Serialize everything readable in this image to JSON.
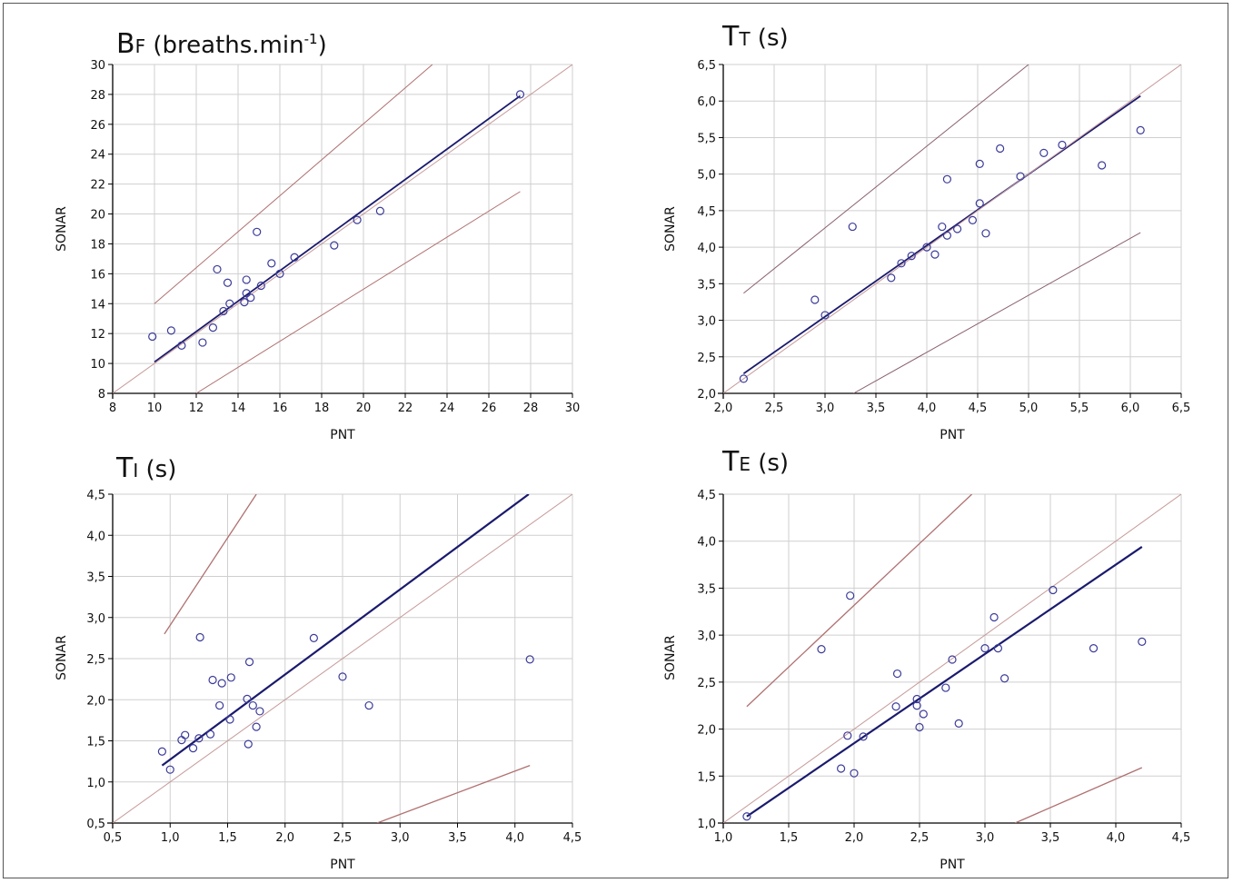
{
  "chart_data": [
    {
      "type": "scatter",
      "title": {
        "main": "B",
        "sub": "F",
        "unit_prefix": " (breaths.min",
        "unit_sup": "-1",
        "unit_suffix": ")"
      },
      "xlabel": "PNT",
      "ylabel": "SONAR",
      "xlim": [
        8,
        30
      ],
      "ylim": [
        8,
        30
      ],
      "xticks": [
        "8",
        "10",
        "12",
        "14",
        "16",
        "18",
        "20",
        "22",
        "24",
        "26",
        "28",
        "30"
      ],
      "yticks": [
        "8",
        "10",
        "12",
        "14",
        "16",
        "18",
        "20",
        "22",
        "24",
        "26",
        "28",
        "30"
      ],
      "grid": true,
      "points": [
        [
          9.9,
          11.8
        ],
        [
          10.8,
          12.2
        ],
        [
          11.3,
          11.2
        ],
        [
          12.3,
          11.4
        ],
        [
          12.8,
          12.4
        ],
        [
          13.0,
          16.3
        ],
        [
          13.3,
          13.5
        ],
        [
          13.5,
          15.4
        ],
        [
          13.6,
          14.0
        ],
        [
          14.3,
          14.1
        ],
        [
          14.4,
          14.7
        ],
        [
          14.4,
          15.6
        ],
        [
          14.6,
          14.4
        ],
        [
          14.9,
          18.8
        ],
        [
          15.1,
          15.2
        ],
        [
          15.6,
          16.7
        ],
        [
          16.0,
          16.0
        ],
        [
          16.7,
          17.1
        ],
        [
          18.6,
          17.9
        ],
        [
          19.7,
          19.6
        ],
        [
          20.8,
          20.2
        ],
        [
          27.5,
          28.0
        ]
      ],
      "lines": [
        {
          "name": "regression",
          "x": [
            10,
            27.5
          ],
          "y": [
            10.1,
            27.9
          ],
          "color": "#1a1a6e",
          "width": 1.8
        },
        {
          "name": "identity",
          "x": [
            8,
            30
          ],
          "y": [
            8,
            30
          ],
          "color": "#c79a9a",
          "width": 1
        },
        {
          "name": "upper-limit",
          "x": [
            10,
            23.3
          ],
          "y": [
            14,
            30
          ],
          "color": "#b07070",
          "width": 1
        },
        {
          "name": "lower-limit",
          "x": [
            12,
            27.5
          ],
          "y": [
            8,
            21.5
          ],
          "color": "#b07070",
          "width": 1
        }
      ]
    },
    {
      "type": "scatter",
      "title": {
        "main": "T",
        "sub": "T",
        "unit_prefix": " (s)",
        "unit_sup": "",
        "unit_suffix": ""
      },
      "xlabel": "PNT",
      "ylabel": "SONAR",
      "xlim": [
        2.0,
        6.5
      ],
      "ylim": [
        2.0,
        6.5
      ],
      "xticks": [
        "2,0",
        "2,5",
        "3,0",
        "3,5",
        "4,0",
        "4,5",
        "5,0",
        "5,5",
        "6,0",
        "6,5"
      ],
      "yticks": [
        "2,0",
        "2,5",
        "3,0",
        "3,5",
        "4,0",
        "4,5",
        "5,0",
        "5,5",
        "6,0",
        "6,5"
      ],
      "grid": true,
      "points": [
        [
          2.2,
          2.2
        ],
        [
          2.9,
          3.28
        ],
        [
          3.0,
          3.07
        ],
        [
          3.27,
          4.28
        ],
        [
          3.65,
          3.58
        ],
        [
          3.75,
          3.78
        ],
        [
          3.85,
          3.88
        ],
        [
          4.0,
          4.0
        ],
        [
          4.08,
          3.9
        ],
        [
          4.15,
          4.28
        ],
        [
          4.2,
          4.16
        ],
        [
          4.2,
          4.93
        ],
        [
          4.3,
          4.25
        ],
        [
          4.45,
          4.37
        ],
        [
          4.52,
          4.6
        ],
        [
          4.52,
          5.14
        ],
        [
          4.58,
          4.19
        ],
        [
          4.72,
          5.35
        ],
        [
          4.92,
          4.97
        ],
        [
          5.15,
          5.29
        ],
        [
          5.33,
          5.4
        ],
        [
          5.72,
          5.12
        ],
        [
          6.1,
          5.6
        ]
      ],
      "lines": [
        {
          "name": "regression",
          "x": [
            2.2,
            6.1
          ],
          "y": [
            2.27,
            6.07
          ],
          "color": "#1a1a6e",
          "width": 1.8
        },
        {
          "name": "identity",
          "x": [
            2.0,
            6.5
          ],
          "y": [
            2.0,
            6.5
          ],
          "color": "#c79a9a",
          "width": 1
        },
        {
          "name": "upper-limit",
          "x": [
            2.2,
            5.0
          ],
          "y": [
            3.37,
            6.5
          ],
          "color": "#8a6070",
          "width": 1
        },
        {
          "name": "lower-limit",
          "x": [
            3.28,
            6.1
          ],
          "y": [
            2.0,
            4.2
          ],
          "color": "#8a6070",
          "width": 1
        }
      ]
    },
    {
      "type": "scatter",
      "title": {
        "main": "T",
        "sub": "I",
        "unit_prefix": " (s)",
        "unit_sup": "",
        "unit_suffix": ""
      },
      "xlabel": "PNT",
      "ylabel": "SONAR",
      "xlim": [
        0.5,
        4.5
      ],
      "ylim": [
        0.5,
        4.5
      ],
      "xticks": [
        "0,5",
        "1,0",
        "1,5",
        "2,0",
        "2,5",
        "3,0",
        "3,5",
        "4,0",
        "4,5"
      ],
      "yticks": [
        "0,5",
        "1,0",
        "1,5",
        "2,0",
        "2,5",
        "3,0",
        "3,5",
        "4,0",
        "4,5"
      ],
      "grid": true,
      "points": [
        [
          0.93,
          1.37
        ],
        [
          1.0,
          1.15
        ],
        [
          1.1,
          1.51
        ],
        [
          1.13,
          1.57
        ],
        [
          1.2,
          1.41
        ],
        [
          1.25,
          1.53
        ],
        [
          1.26,
          2.76
        ],
        [
          1.35,
          1.58
        ],
        [
          1.37,
          2.24
        ],
        [
          1.43,
          1.93
        ],
        [
          1.45,
          2.2
        ],
        [
          1.52,
          1.76
        ],
        [
          1.53,
          2.27
        ],
        [
          1.67,
          2.01
        ],
        [
          1.68,
          1.46
        ],
        [
          1.69,
          2.46
        ],
        [
          1.72,
          1.93
        ],
        [
          1.75,
          1.67
        ],
        [
          1.78,
          1.86
        ],
        [
          2.25,
          2.75
        ],
        [
          2.5,
          2.28
        ],
        [
          2.73,
          1.93
        ],
        [
          4.13,
          2.49
        ]
      ],
      "lines": [
        {
          "name": "regression",
          "x": [
            0.93,
            4.12
          ],
          "y": [
            1.2,
            4.5
          ],
          "color": "#1a1a6e",
          "width": 2.2
        },
        {
          "name": "identity",
          "x": [
            0.5,
            4.5
          ],
          "y": [
            0.5,
            4.5
          ],
          "color": "#c79a9a",
          "width": 1
        },
        {
          "name": "upper-limit",
          "x": [
            0.95,
            1.75
          ],
          "y": [
            2.8,
            4.5
          ],
          "color": "#b07070",
          "width": 1.3
        },
        {
          "name": "lower-limit",
          "x": [
            2.8,
            4.13
          ],
          "y": [
            0.5,
            1.2
          ],
          "color": "#b07070",
          "width": 1.3
        }
      ]
    },
    {
      "type": "scatter",
      "title": {
        "main": "T",
        "sub": "E",
        "unit_prefix": " (s)",
        "unit_sup": "",
        "unit_suffix": ""
      },
      "xlabel": "PNT",
      "ylabel": "SONAR",
      "xlim": [
        1.0,
        4.5
      ],
      "ylim": [
        1.0,
        4.5
      ],
      "xticks": [
        "1,0",
        "1,5",
        "2,0",
        "2,5",
        "3,0",
        "3,5",
        "4,0",
        "4,5"
      ],
      "yticks": [
        "1,0",
        "1,5",
        "2,0",
        "2,5",
        "3,0",
        "3,5",
        "4,0",
        "4,5"
      ],
      "grid": true,
      "points": [
        [
          1.18,
          1.07
        ],
        [
          1.75,
          2.85
        ],
        [
          1.9,
          1.58
        ],
        [
          1.95,
          1.93
        ],
        [
          1.97,
          3.42
        ],
        [
          2.0,
          1.53
        ],
        [
          2.07,
          1.92
        ],
        [
          2.32,
          2.24
        ],
        [
          2.33,
          2.59
        ],
        [
          2.48,
          2.32
        ],
        [
          2.48,
          2.25
        ],
        [
          2.5,
          2.02
        ],
        [
          2.53,
          2.16
        ],
        [
          2.7,
          2.44
        ],
        [
          2.75,
          2.74
        ],
        [
          2.8,
          2.06
        ],
        [
          3.0,
          2.86
        ],
        [
          3.07,
          3.19
        ],
        [
          3.1,
          2.86
        ],
        [
          3.15,
          2.54
        ],
        [
          3.52,
          3.48
        ],
        [
          3.83,
          2.86
        ],
        [
          4.2,
          2.93
        ]
      ],
      "lines": [
        {
          "name": "regression",
          "x": [
            1.18,
            4.2
          ],
          "y": [
            1.07,
            3.94
          ],
          "color": "#1a1a6e",
          "width": 2.2
        },
        {
          "name": "identity",
          "x": [
            1.0,
            4.5
          ],
          "y": [
            1.0,
            4.5
          ],
          "color": "#c79a9a",
          "width": 1
        },
        {
          "name": "upper-limit",
          "x": [
            1.18,
            2.9
          ],
          "y": [
            2.24,
            4.5
          ],
          "color": "#b07070",
          "width": 1.3
        },
        {
          "name": "lower-limit",
          "x": [
            3.23,
            4.2
          ],
          "y": [
            1.0,
            1.59
          ],
          "color": "#b07070",
          "width": 1.3
        }
      ]
    }
  ]
}
